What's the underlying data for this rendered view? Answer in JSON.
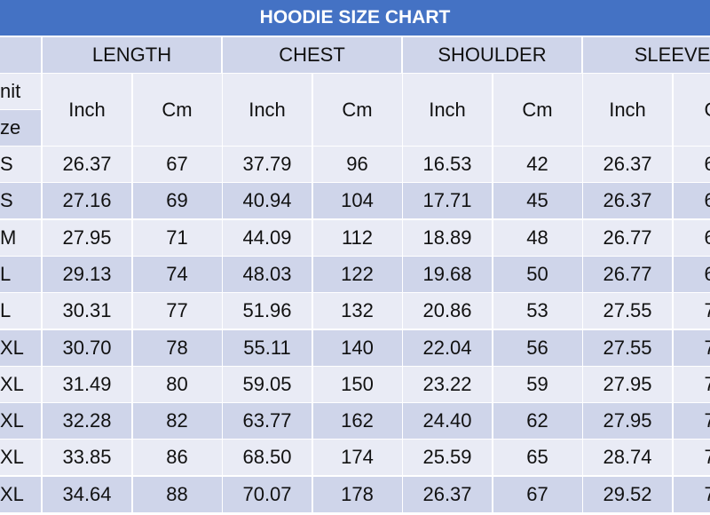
{
  "header": {
    "title": "HOODIE SIZE CHART"
  },
  "table": {
    "groups": [
      "LENGTH",
      "CHEST",
      "SHOULDER",
      "SLEEVE"
    ],
    "unit_label": "nit",
    "size_label": "ze",
    "subheaders": [
      "Inch",
      "Cm",
      "Inch",
      "Cm",
      "Inch",
      "Cm",
      "Inch",
      "C"
    ],
    "rows": [
      [
        "S",
        "26.37",
        "67",
        "37.79",
        "96",
        "16.53",
        "42",
        "26.37",
        "6"
      ],
      [
        "S",
        "27.16",
        "69",
        "40.94",
        "104",
        "17.71",
        "45",
        "26.37",
        "6"
      ],
      [
        "M",
        "27.95",
        "71",
        "44.09",
        "112",
        "18.89",
        "48",
        "26.77",
        "6"
      ],
      [
        "L",
        "29.13",
        "74",
        "48.03",
        "122",
        "19.68",
        "50",
        "26.77",
        "6"
      ],
      [
        "L",
        "30.31",
        "77",
        "51.96",
        "132",
        "20.86",
        "53",
        "27.55",
        "7"
      ],
      [
        "XL",
        "30.70",
        "78",
        "55.11",
        "140",
        "22.04",
        "56",
        "27.55",
        "7"
      ],
      [
        "XL",
        "31.49",
        "80",
        "59.05",
        "150",
        "23.22",
        "59",
        "27.95",
        "7"
      ],
      [
        "XL",
        "32.28",
        "82",
        "63.77",
        "162",
        "24.40",
        "62",
        "27.95",
        "7"
      ],
      [
        "XL",
        "33.85",
        "86",
        "68.50",
        "174",
        "25.59",
        "65",
        "28.74",
        "7"
      ],
      [
        "XL",
        "34.64",
        "88",
        "70.07",
        "178",
        "26.37",
        "67",
        "29.52",
        "7"
      ]
    ]
  }
}
